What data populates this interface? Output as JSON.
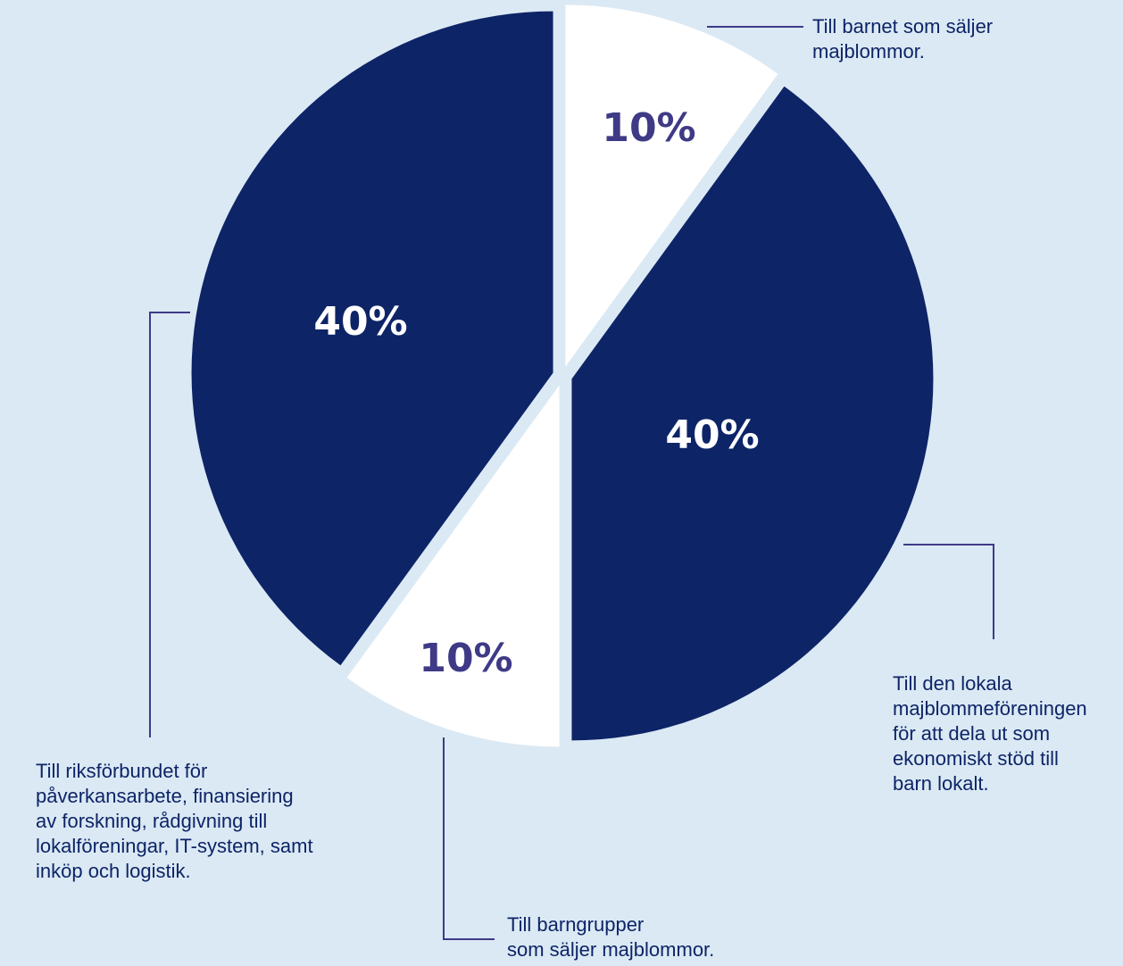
{
  "chart_data": {
    "type": "pie",
    "slices": [
      {
        "label": "Till barnet som säljer\nmajblommor.",
        "value": 10,
        "value_label": "10%",
        "color": "#ffffff"
      },
      {
        "label": "Till den lokala\nmajblommeföreningen\nför att dela ut som\nekonomiskt stöd till\nbarn lokalt.",
        "value": 40,
        "value_label": "40%",
        "color": "#0d2467"
      },
      {
        "label": "Till barngrupper\nsom säljer majblommor.",
        "value": 10,
        "value_label": "10%",
        "color": "#ffffff"
      },
      {
        "label": "Till riksförbundet för\npåverkansarbete, finansiering\nav forskning, rådgivning till\nlokalföreningar, IT-system, samt\ninköp och logistik.",
        "value": 40,
        "value_label": "40%",
        "color": "#0d2467"
      }
    ],
    "value_label_colors": {
      "on_light": "#3e3a86",
      "on_dark": "#ffffff"
    },
    "leader_line_color": "#3e3a86",
    "background": "#dbe9f4"
  }
}
